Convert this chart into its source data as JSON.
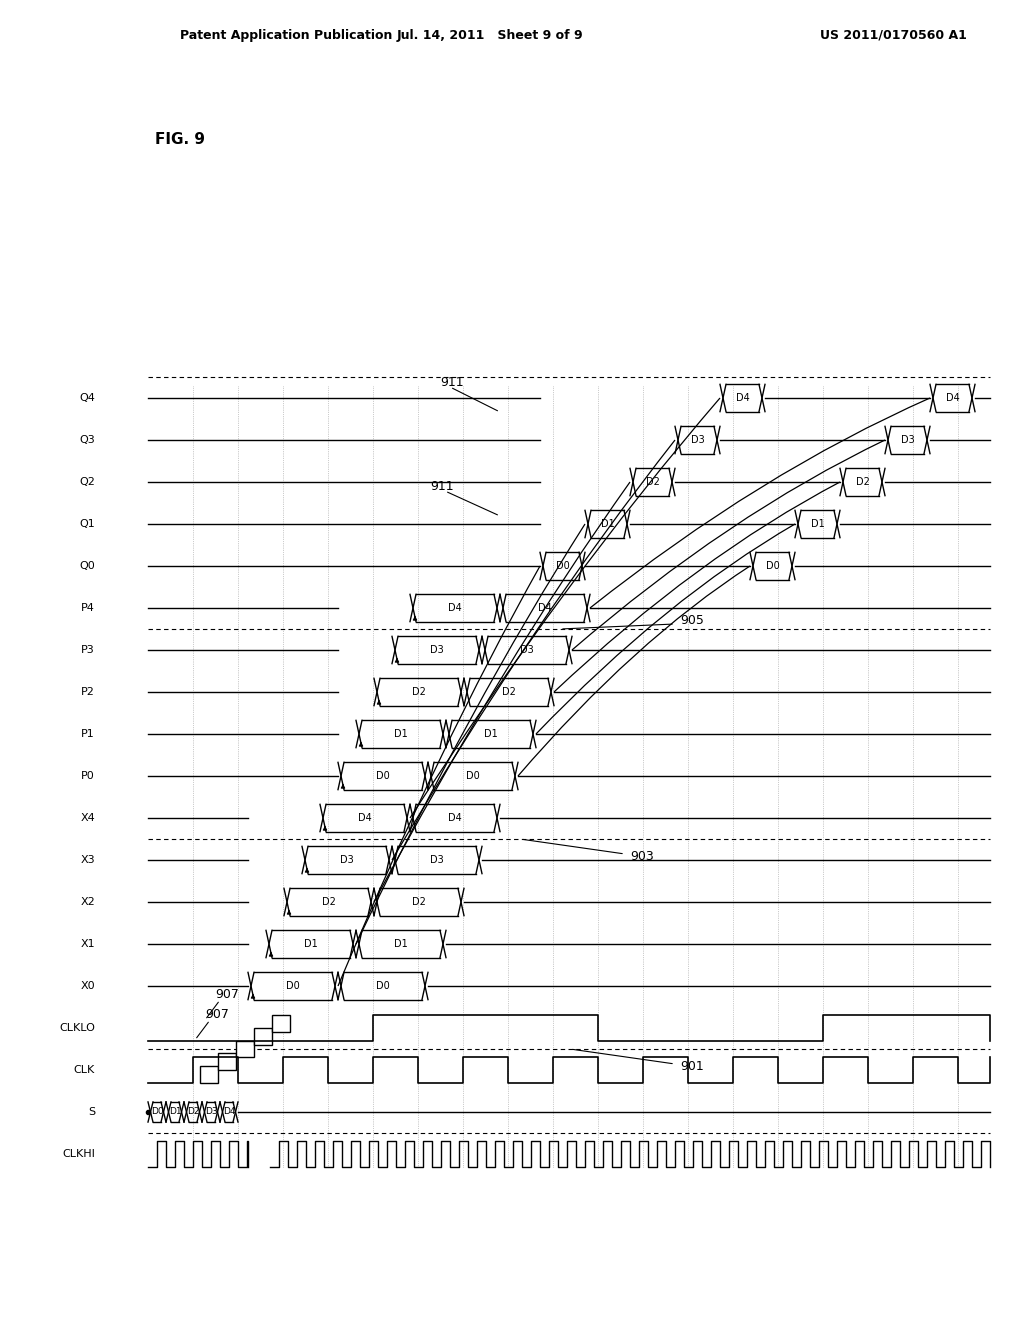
{
  "title_left": "Patent Application Publication",
  "title_mid": "Jul. 14, 2011   Sheet 9 of 9",
  "title_right": "US 2011/0170560 A1",
  "fig_label": "FIG. 9",
  "signal_labels": [
    "CLKHI",
    "S",
    "CLK",
    "CLKLO",
    "X0",
    "X1",
    "X2",
    "X3",
    "X4",
    "P0",
    "P1",
    "P2",
    "P3",
    "P4",
    "Q0",
    "Q1",
    "Q2",
    "Q3",
    "Q4"
  ],
  "ref_901": "901",
  "ref_903": "903",
  "ref_905": "905",
  "ref_907": "907",
  "ref_911": "911",
  "bg_color": "#ffffff",
  "line_color": "#000000"
}
